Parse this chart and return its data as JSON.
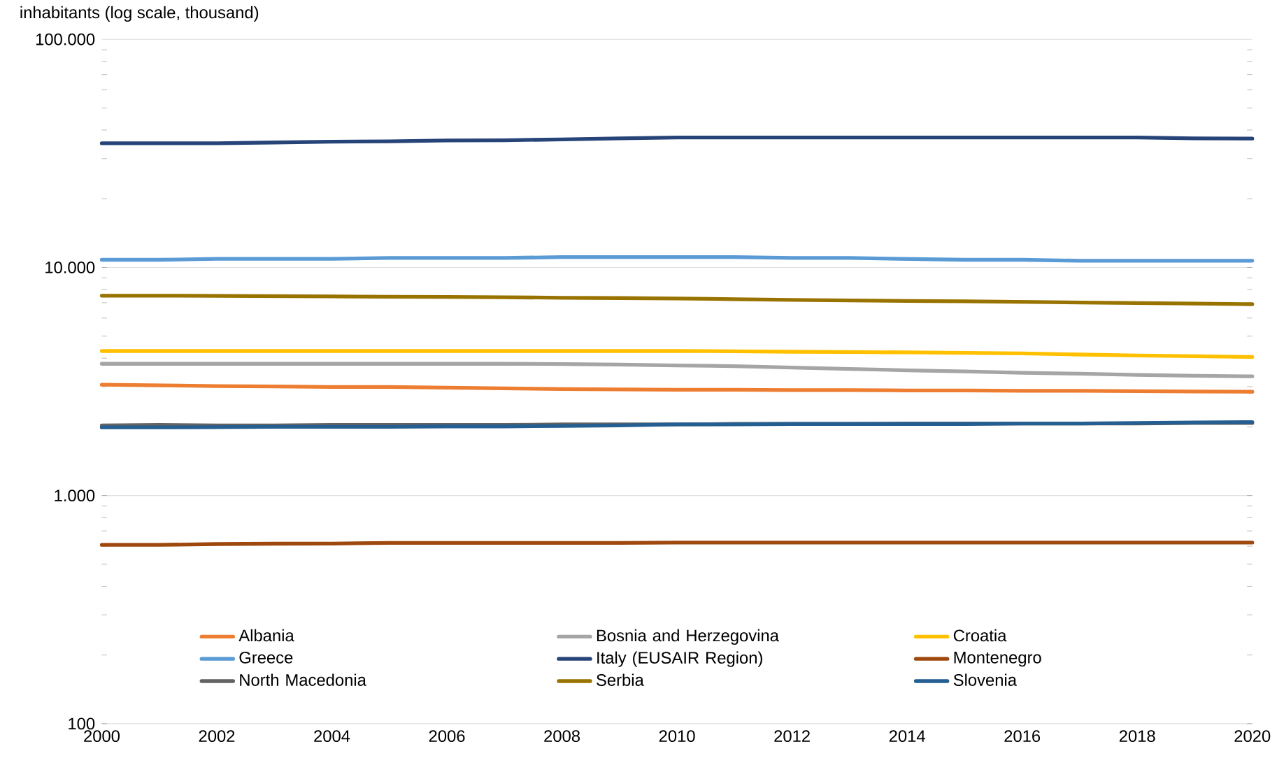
{
  "chart_data": {
    "type": "line",
    "ylabel": "inhabitants (log scale, thousand)",
    "x": [
      2000,
      2001,
      2002,
      2003,
      2004,
      2005,
      2006,
      2007,
      2008,
      2009,
      2010,
      2011,
      2012,
      2013,
      2014,
      2015,
      2016,
      2017,
      2018,
      2019,
      2020
    ],
    "series": [
      {
        "name": "Albania",
        "color": "#ed7d31",
        "values": [
          3060,
          3040,
          3020,
          3010,
          2990,
          2990,
          2970,
          2950,
          2930,
          2920,
          2910,
          2910,
          2900,
          2900,
          2890,
          2890,
          2880,
          2880,
          2870,
          2860,
          2850
        ]
      },
      {
        "name": "Bosnia and Herzegovina",
        "color": "#a5a5a5",
        "values": [
          3780,
          3780,
          3780,
          3780,
          3780,
          3780,
          3780,
          3780,
          3770,
          3750,
          3720,
          3690,
          3640,
          3590,
          3540,
          3500,
          3450,
          3420,
          3380,
          3350,
          3330
        ]
      },
      {
        "name": "Croatia",
        "color": "#ffc000",
        "values": [
          4300,
          4300,
          4300,
          4300,
          4300,
          4300,
          4300,
          4300,
          4300,
          4300,
          4300,
          4290,
          4270,
          4260,
          4240,
          4220,
          4200,
          4150,
          4110,
          4080,
          4050
        ]
      },
      {
        "name": "Greece",
        "color": "#5b9bd5",
        "values": [
          10800,
          10800,
          10900,
          10900,
          10900,
          11000,
          11000,
          11000,
          11100,
          11100,
          11100,
          11100,
          11000,
          11000,
          10900,
          10800,
          10800,
          10700,
          10700,
          10700,
          10700
        ]
      },
      {
        "name": "Italy (EUSAIR Region)",
        "color": "#264478",
        "values": [
          35000,
          35000,
          35000,
          35300,
          35600,
          35700,
          36000,
          36100,
          36400,
          36800,
          37100,
          37100,
          37100,
          37100,
          37100,
          37100,
          37100,
          37100,
          37100,
          36800,
          36700
        ]
      },
      {
        "name": "Montenegro",
        "color": "#9e480e",
        "values": [
          608,
          608,
          613,
          615,
          616,
          620,
          620,
          620,
          620,
          620,
          622,
          622,
          622,
          622,
          622,
          622,
          622,
          622,
          622,
          622,
          622
        ]
      },
      {
        "name": "North Macedonia",
        "color": "#636363",
        "values": [
          2030,
          2040,
          2030,
          2030,
          2040,
          2040,
          2040,
          2040,
          2050,
          2050,
          2050,
          2060,
          2060,
          2060,
          2070,
          2070,
          2070,
          2070,
          2070,
          2080,
          2080
        ]
      },
      {
        "name": "Serbia",
        "color": "#997300",
        "values": [
          7520,
          7520,
          7500,
          7480,
          7460,
          7440,
          7420,
          7400,
          7360,
          7340,
          7310,
          7260,
          7210,
          7170,
          7130,
          7100,
          7060,
          7020,
          6980,
          6940,
          6900
        ]
      },
      {
        "name": "Slovenia",
        "color": "#255e91",
        "values": [
          1990,
          1990,
          1995,
          2000,
          2000,
          2000,
          2010,
          2010,
          2020,
          2030,
          2050,
          2050,
          2060,
          2060,
          2060,
          2060,
          2070,
          2070,
          2080,
          2090,
          2100
        ]
      }
    ],
    "log": "y",
    "xlim": [
      2000,
      2020
    ],
    "xticks": [
      2000,
      2002,
      2004,
      2006,
      2008,
      2010,
      2012,
      2014,
      2016,
      2018,
      2020
    ],
    "ylim": [
      100,
      100000
    ],
    "yticks": [
      {
        "value": 100,
        "label": "100"
      },
      {
        "value": 1000,
        "label": "1.000"
      },
      {
        "value": 10000,
        "label": "10.000"
      },
      {
        "value": 100000,
        "label": "100.000"
      }
    ],
    "grid": "y",
    "legend": "bottom",
    "line_style": "solid",
    "marker": "none"
  }
}
